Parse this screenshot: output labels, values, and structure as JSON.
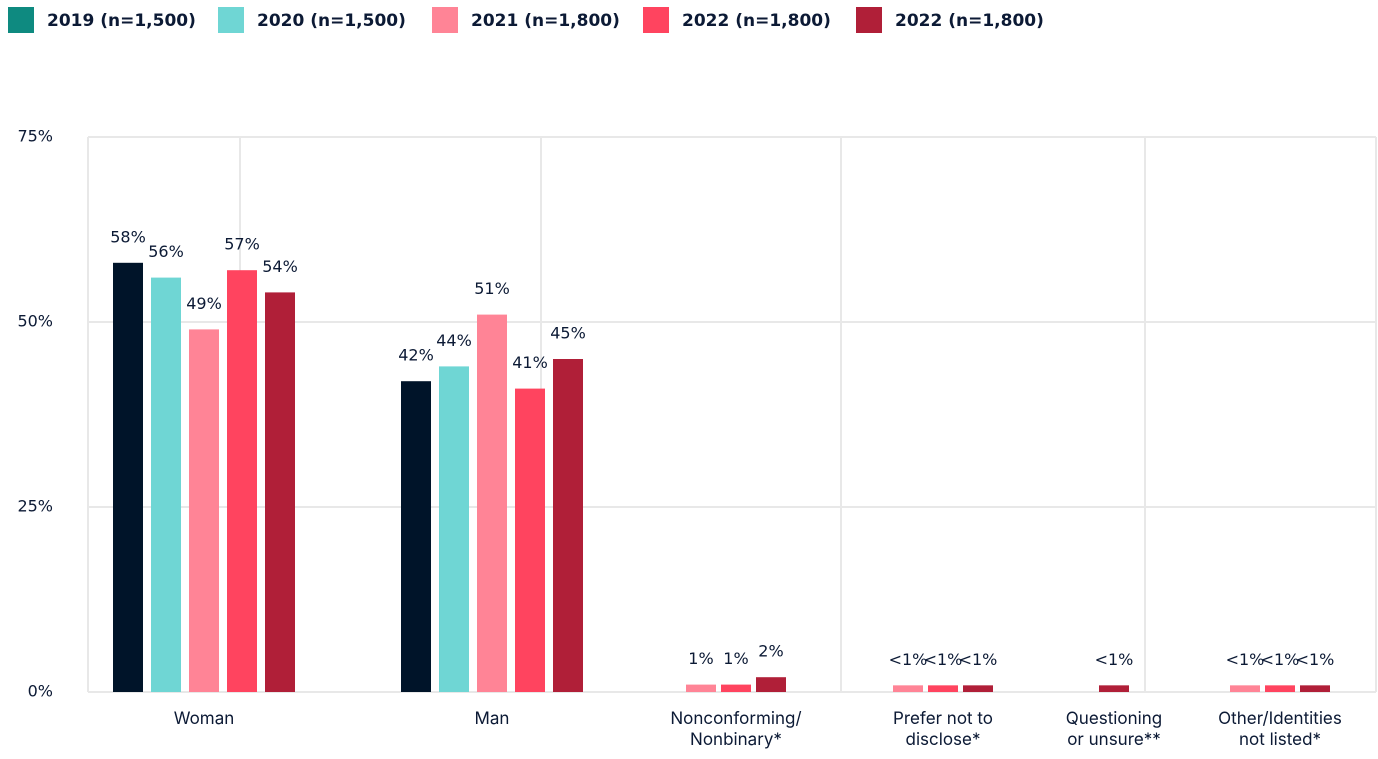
{
  "chart_data": {
    "type": "bar",
    "categories": [
      "Woman",
      "Man",
      "Nonconforming/\nNonbinary*",
      "Prefer not to\ndisclose*",
      "Questioning\nor unsure**",
      "Other/Identities\nnot listed*"
    ],
    "series": [
      {
        "name": "2019 (n=1,500)",
        "color": "#001429",
        "legend_color": "#0e8a80",
        "values": [
          58,
          42,
          null,
          null,
          null,
          null
        ],
        "value_labels": [
          "58%",
          "42%",
          null,
          null,
          null,
          null
        ]
      },
      {
        "name": "2020 (n=1,500)",
        "color": "#6fd6d4",
        "legend_color": "#6fd6d4",
        "values": [
          56,
          44,
          null,
          null,
          null,
          null
        ],
        "value_labels": [
          "56%",
          "44%",
          null,
          null,
          null,
          null
        ]
      },
      {
        "name": "2021 (n=1,800)",
        "color": "#ff8496",
        "legend_color": "#ff8496",
        "values": [
          49,
          51,
          1,
          0.9,
          null,
          0.9
        ],
        "value_labels": [
          "49%",
          "51%",
          "1%",
          "<1%",
          null,
          "<1%"
        ]
      },
      {
        "name": "2022 (n=1,800)",
        "color": "#ff445f",
        "legend_color": "#ff445f",
        "values": [
          57,
          41,
          1,
          0.9,
          null,
          0.9
        ],
        "value_labels": [
          "57%",
          "41%",
          "1%",
          "<1%",
          null,
          "<1%"
        ]
      },
      {
        "name": "2022 (n=1,800)",
        "color": "#b01f38",
        "legend_color": "#b01f38",
        "values": [
          54,
          45,
          2,
          0.9,
          0.9,
          0.9
        ],
        "value_labels": [
          "54%",
          "45%",
          "2%",
          "<1%",
          "<1%",
          "<1%"
        ]
      }
    ],
    "ylim": [
      0,
      75
    ],
    "yticks": [
      {
        "value": 0,
        "label": "0%"
      },
      {
        "value": 25,
        "label": "25%"
      },
      {
        "value": 50,
        "label": "50%"
      },
      {
        "value": 75,
        "label": "75%"
      }
    ],
    "grid": true,
    "legend": "top-left"
  }
}
